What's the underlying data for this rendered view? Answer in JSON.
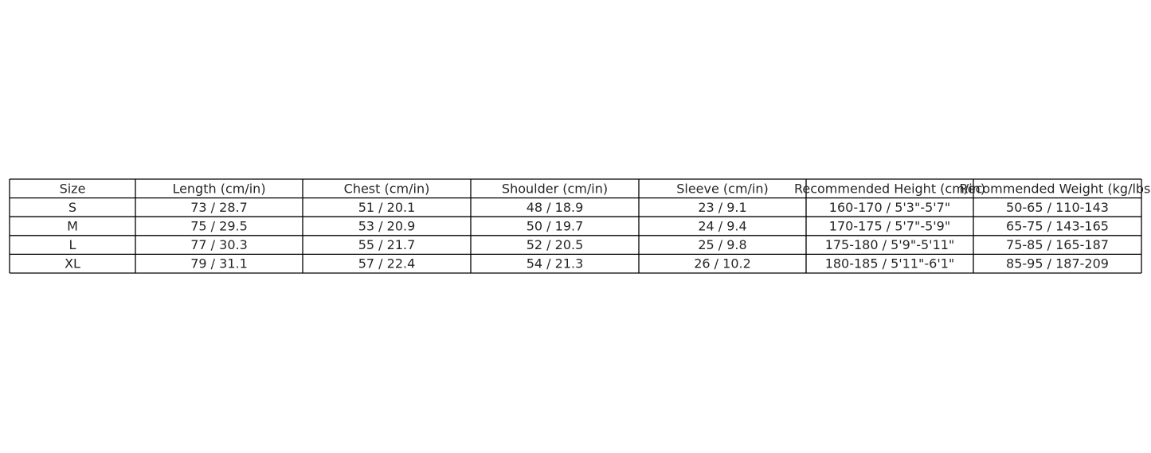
{
  "table": {
    "header": [
      "Size",
      "Length (cm/in)",
      "Chest (cm/in)",
      "Shoulder (cm/in)",
      "Sleeve (cm/in)",
      "Recommended Height (cm/in)",
      "Recommended Weight (kg/lbs)"
    ],
    "rows": [
      [
        "S",
        "73 / 28.7",
        "51 / 20.1",
        "48 / 18.9",
        "23 / 9.1",
        "160-170 / 5'3\"-5'7\"",
        "50-65 / 110-143"
      ],
      [
        "M",
        "75 / 29.5",
        "53 / 20.9",
        "50 / 19.7",
        "24 / 9.4",
        "170-175 / 5'7\"-5'9\"",
        "65-75 / 143-165"
      ],
      [
        "L",
        "77 / 30.3",
        "55 / 21.7",
        "52 / 20.5",
        "25 / 9.8",
        "175-180 / 5'9\"-5'11\"",
        "75-85 / 165-187"
      ],
      [
        "XL",
        "79 / 31.1",
        "57 / 22.4",
        "54 / 21.3",
        "26 / 10.2",
        "180-185 / 5'11\"-6'1\"",
        "85-95 / 187-209"
      ]
    ]
  }
}
